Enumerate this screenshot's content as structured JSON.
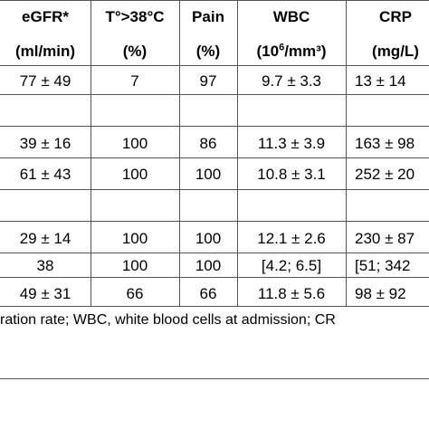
{
  "header": {
    "row1": [
      "eGFR*",
      "T°>38°C",
      "Pain",
      "WBC",
      "CRP"
    ],
    "row2": [
      "(ml/min)",
      "(%)",
      "(%)",
      "(10",
      "6",
      "/mm³)",
      "(mg/L)"
    ]
  },
  "rows": [
    [
      "77 ± 49",
      "7",
      "97",
      "9.7 ± 3.3",
      "13 ± 14"
    ],
    [
      "",
      "",
      "",
      "",
      ""
    ],
    [
      "39 ± 16",
      "100",
      "86",
      "11.3 ± 3.9",
      "163 ± 98"
    ],
    [
      "61 ± 43",
      "100",
      "100",
      "10.8 ± 3.1",
      "252 ± 20"
    ],
    [
      "",
      "",
      "",
      "",
      ""
    ],
    [
      "29 ± 14",
      "100",
      "100",
      "12.1 ± 2.6",
      "230 ± 87"
    ],
    [
      "38",
      "100",
      "100",
      "[4.2; 6.5]",
      "[51; 342"
    ],
    [
      "49 ± 31",
      "66",
      "66",
      "11.8 ± 5.6",
      "98 ± 92"
    ]
  ],
  "footnote": "ration rate; WBC, white blood cells at admission; CR"
}
